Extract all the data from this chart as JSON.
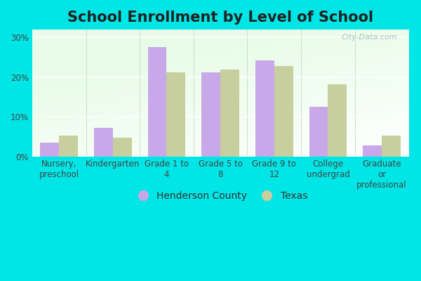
{
  "title": "School Enrollment by Level of School",
  "categories": [
    "Nursery,\npreschool",
    "Kindergarten",
    "Grade 1 to\n4",
    "Grade 5 to\n8",
    "Grade 9 to\n12",
    "College\nundergrad",
    "Graduate\nor\nprofessional"
  ],
  "henderson": [
    3.5,
    7.2,
    27.5,
    21.2,
    24.2,
    12.5,
    2.8
  ],
  "texas": [
    5.2,
    4.8,
    21.2,
    22.0,
    22.8,
    18.2,
    5.2
  ],
  "henderson_color": "#c8a8e8",
  "texas_color": "#c8cf9f",
  "bar_width": 0.35,
  "ylim": [
    0,
    32
  ],
  "yticks": [
    0,
    10,
    20,
    30
  ],
  "ytick_labels": [
    "0%",
    "10%",
    "20%",
    "30%"
  ],
  "legend_henderson": "Henderson County",
  "legend_texas": "Texas",
  "bg_outer": "#00e5e5",
  "title_fontsize": 15,
  "tick_fontsize": 8.5,
  "legend_fontsize": 10,
  "watermark": "City-Data.com"
}
